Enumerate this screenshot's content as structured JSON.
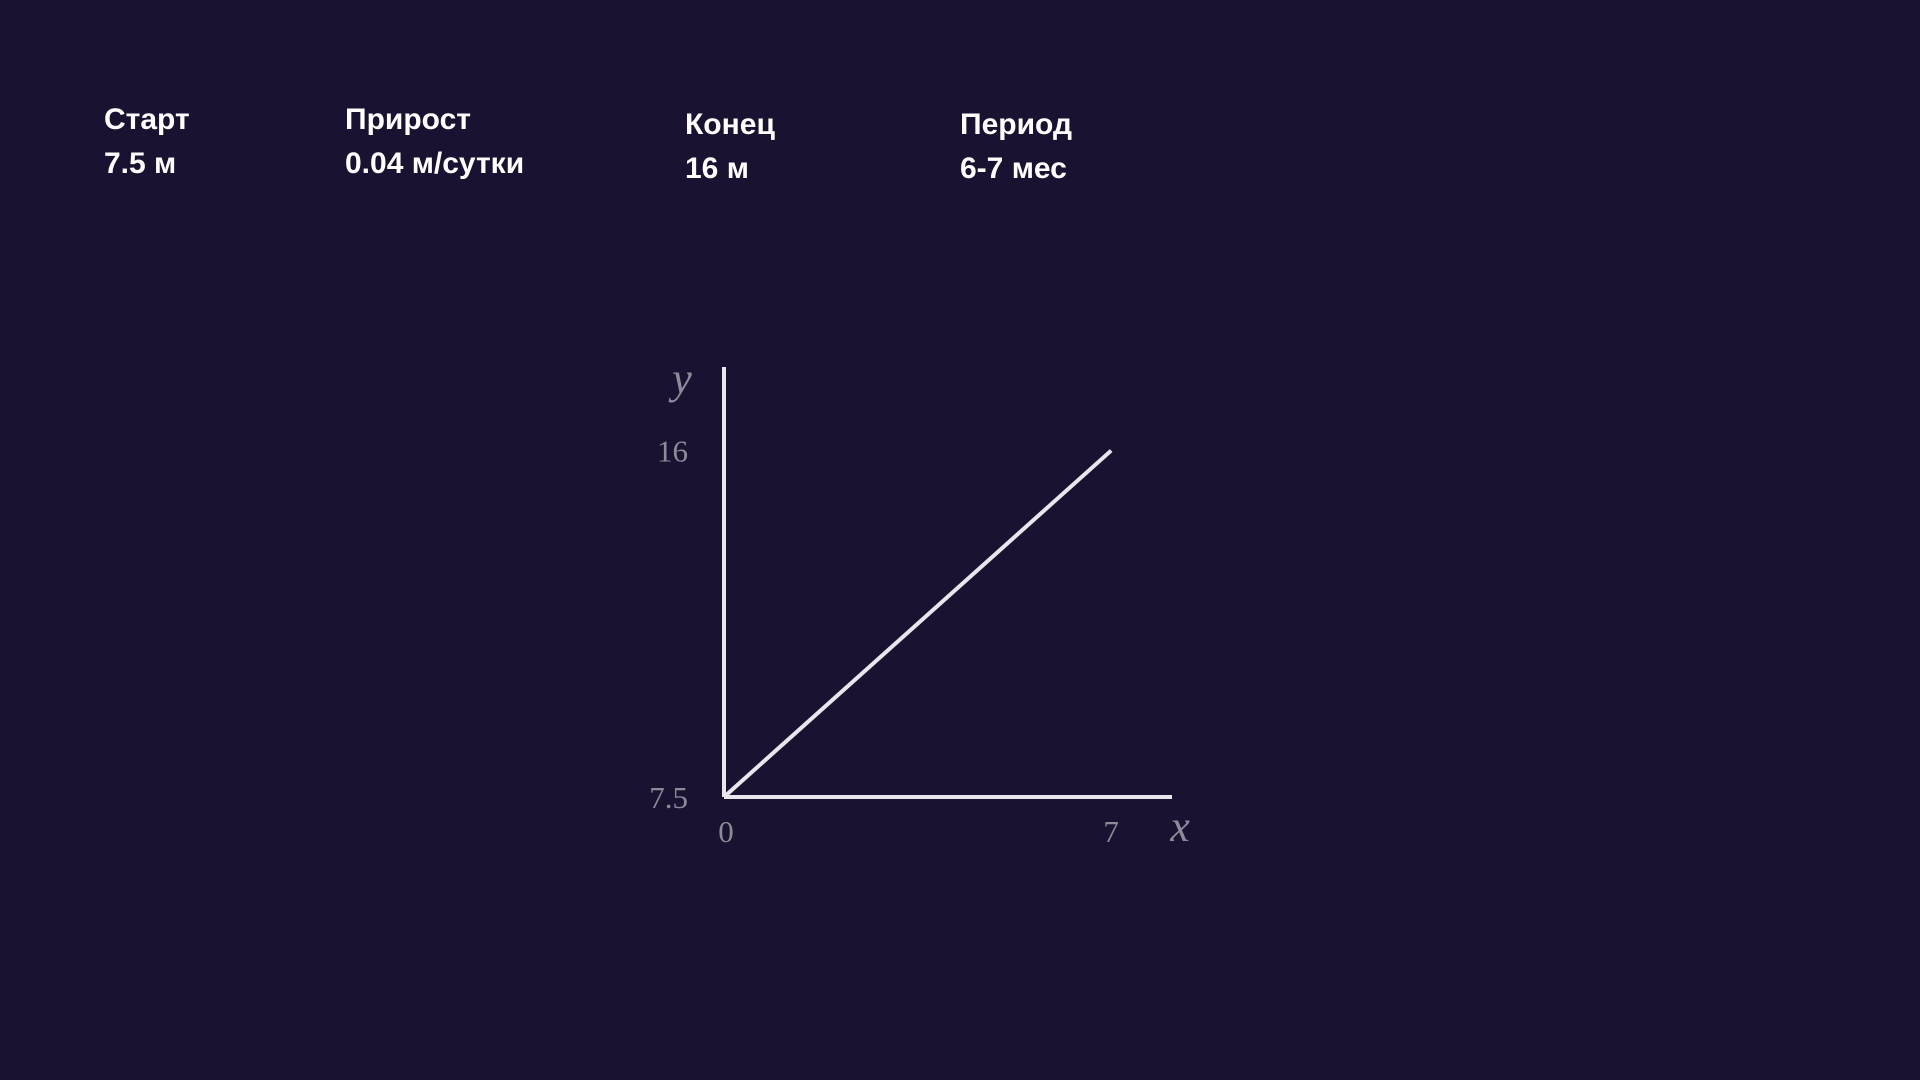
{
  "stats": {
    "start": {
      "label": "Старт",
      "value": "7.5 м"
    },
    "growth": {
      "label": "Прирост",
      "value": "0.04 м/сутки"
    },
    "end": {
      "label": "Конец",
      "value": "16 м"
    },
    "period": {
      "label": "Период",
      "value": "6-7 мес"
    }
  },
  "colors": {
    "background": "#1b1130",
    "text": "#ffffff",
    "axis": "#e9e6ee",
    "tick_label": "#8f8a99"
  },
  "chart_data": {
    "type": "line",
    "title": "",
    "xlabel": "x",
    "ylabel": "y",
    "x_ticks": [
      "0",
      "7"
    ],
    "y_ticks": [
      "7.5",
      "16"
    ],
    "xlim": [
      0,
      8.1
    ],
    "ylim": [
      7.5,
      18.05
    ],
    "grid": false,
    "series": [
      {
        "x": [
          0,
          7
        ],
        "y": [
          7.5,
          16
        ]
      }
    ]
  }
}
